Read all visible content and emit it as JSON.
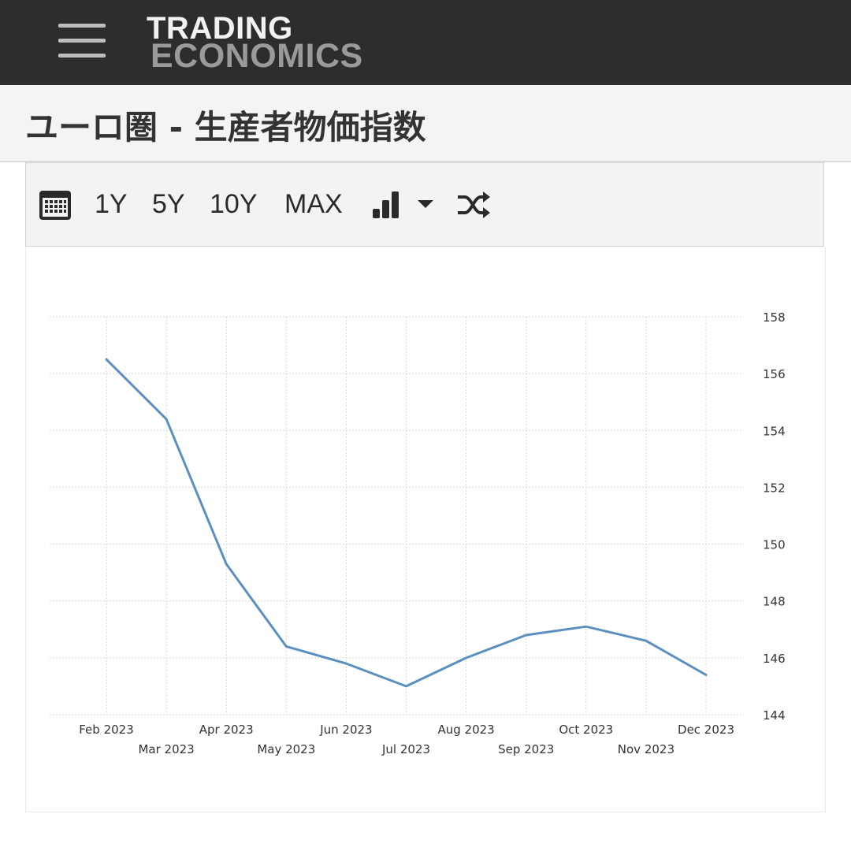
{
  "header": {
    "logo_line1": "TRADING",
    "logo_line2": "ECONOMICS"
  },
  "page": {
    "title": "ユーロ圏 - 生産者物価指数"
  },
  "toolbar": {
    "calendar_icon": "calendar-icon",
    "range_buttons": [
      "1Y",
      "5Y",
      "10Y",
      "MAX"
    ],
    "chart_type_icon": "bar-chart-icon",
    "dropdown_icon": "caret-down-icon",
    "shuffle_icon": "shuffle-icon"
  },
  "chart_data": {
    "type": "line",
    "title": "",
    "xlabel": "",
    "ylabel": "",
    "x": [
      "Feb 2023",
      "Mar 2023",
      "Apr 2023",
      "May 2023",
      "Jun 2023",
      "Jul 2023",
      "Aug 2023",
      "Sep 2023",
      "Oct 2023",
      "Nov 2023",
      "Dec 2023"
    ],
    "series": [
      {
        "values": [
          156.5,
          154.4,
          149.3,
          146.4,
          145.8,
          145.0,
          146.0,
          146.8,
          147.1,
          146.6,
          145.4
        ]
      }
    ],
    "ylim": [
      144,
      158
    ],
    "yticks": [
      144,
      146,
      148,
      150,
      152,
      154,
      156,
      158
    ],
    "y_axis_position": "right",
    "grid": true,
    "line_color": "#5a8fc0",
    "grid_color": "#d9d9d9"
  }
}
